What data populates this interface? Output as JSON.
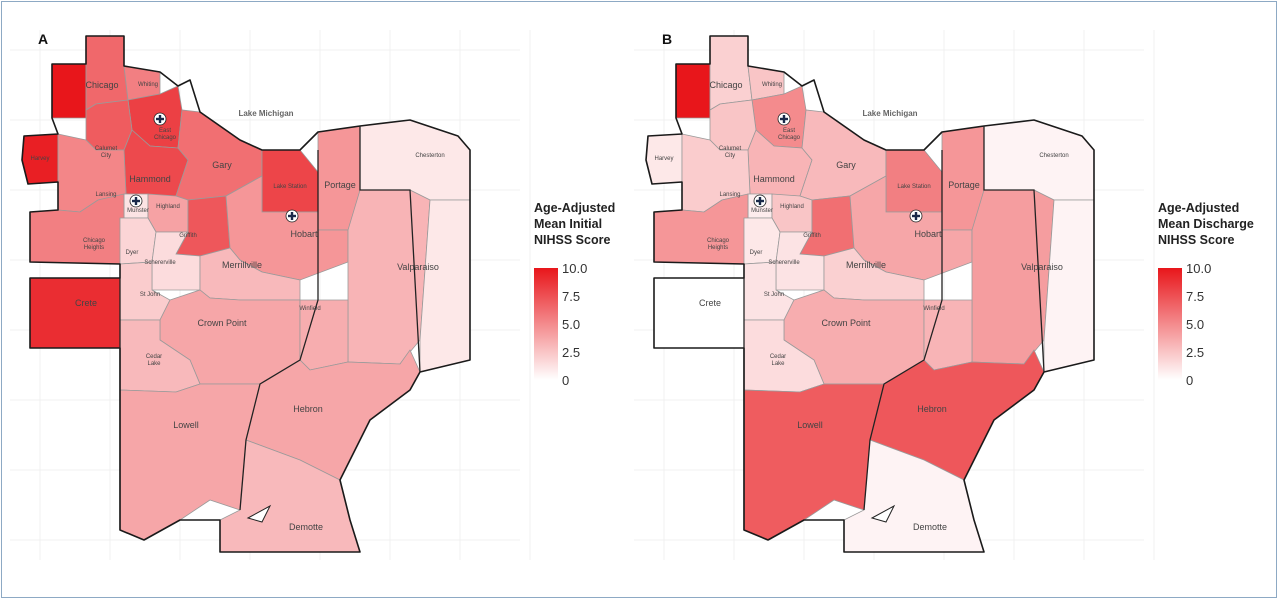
{
  "panels": [
    {
      "letter": "A",
      "lake": "Lake Michigan",
      "legend": {
        "title": [
          "Age-Adjusted",
          "Mean Initial",
          "NIHSS Score"
        ],
        "ticks": [
          "10.0",
          "7.5",
          "5.0",
          "2.5",
          "0"
        ]
      },
      "places": {
        "chicago": "Chicago",
        "whiting": "Whiting",
        "east_chicago": "East\nChicago",
        "harvey": "Harvey",
        "calumet_city": "Calumet\nCity",
        "hammond": "Hammond",
        "gary": "Gary",
        "lake_station": "Lake Station",
        "portage": "Portage",
        "chesterton": "Chesterton",
        "lansing": "Lansing",
        "munster": "Munster",
        "highland": "Highland",
        "griffith": "Griffith",
        "hobart": "Hobart",
        "chicago_heights": "Chicago\nHeights",
        "dyer": "Dyer",
        "schererville": "Schererville",
        "merrillville": "Merrillville",
        "valparaiso": "Valparaiso",
        "crete": "Crete",
        "st_john": "St John",
        "crown_point": "Crown Point",
        "winfield": "Winfield",
        "cedar_lake": "Cedar\nLake",
        "lowell": "Lowell",
        "hebron": "Hebron",
        "demotte": "Demotte"
      },
      "values": {
        "chicago": 6.5,
        "whiting": 5.5,
        "east_chicago": 8.2,
        "harvey": 9.6,
        "calumet_city": 7.0,
        "hammond": 7.8,
        "gary": 6.2,
        "lake_station": 8.0,
        "portage": 4.5,
        "chesterton": 1.0,
        "lansing": 5.2,
        "munster": 1.2,
        "highland": 4.0,
        "griffith": 7.2,
        "hobart": 4.5,
        "chicago_heights": 5.5,
        "dyer": 1.8,
        "schererville": 1.5,
        "merrillville": 3.0,
        "valparaiso": 3.2,
        "crete": 9.0,
        "st_john": 2.2,
        "crown_point": 3.8,
        "winfield": 3.5,
        "cedar_lake": 3.0,
        "lowell": 3.8,
        "hebron": 3.8,
        "demotte": 3.0,
        "far_nw": 10.0
      }
    },
    {
      "letter": "B",
      "lake": "Lake Michigan",
      "legend": {
        "title": [
          "Age-Adjusted",
          "Mean Discharge",
          "NIHSS Score"
        ],
        "ticks": [
          "10.0",
          "7.5",
          "5.0",
          "2.5",
          "0"
        ]
      },
      "places": {
        "chicago": "Chicago",
        "whiting": "Whiting",
        "east_chicago": "East\nChicago",
        "harvey": "Harvey",
        "calumet_city": "Calumet\nCity",
        "hammond": "Hammond",
        "gary": "Gary",
        "lake_station": "Lake Station",
        "portage": "Portage",
        "chesterton": "Chesterton",
        "lansing": "Lansing",
        "munster": "Munster",
        "highland": "Highland",
        "griffith": "Griffith",
        "hobart": "Hobart",
        "chicago_heights": "Chicago\nHeights",
        "dyer": "Dyer",
        "schererville": "Schererville",
        "merrillville": "Merrillville",
        "valparaiso": "Valparaiso",
        "crete": "Crete",
        "st_john": "St John",
        "crown_point": "Crown Point",
        "winfield": "Winfield",
        "cedar_lake": "Cedar\nLake",
        "lowell": "Lowell",
        "hebron": "Hebron",
        "demotte": "Demotte"
      },
      "values": {
        "chicago": 2.0,
        "whiting": 2.5,
        "east_chicago": 5.0,
        "harvey": 1.0,
        "calumet_city": 2.5,
        "hammond": 3.2,
        "gary": 3.0,
        "lake_station": 5.5,
        "portage": 4.5,
        "chesterton": 0.5,
        "lansing": 2.2,
        "munster": 0.8,
        "highland": 2.5,
        "griffith": 6.2,
        "hobart": 3.8,
        "chicago_heights": 4.5,
        "dyer": 1.0,
        "schererville": 1.2,
        "merrillville": 2.0,
        "valparaiso": 4.2,
        "crete": 0.0,
        "st_john": 1.2,
        "crown_point": 3.5,
        "winfield": 3.2,
        "cedar_lake": 1.5,
        "lowell": 7.0,
        "hebron": 7.2,
        "demotte": 0.5,
        "far_nw": 10.0
      }
    }
  ],
  "colors": {
    "low": "#ffffff",
    "high": "#e8161b",
    "outline": "#1a1a1a",
    "hospital_fill": "#ffffff",
    "hospital_cross": "#1a2a4a"
  },
  "hospital_icon": "hospital-cross-icon"
}
